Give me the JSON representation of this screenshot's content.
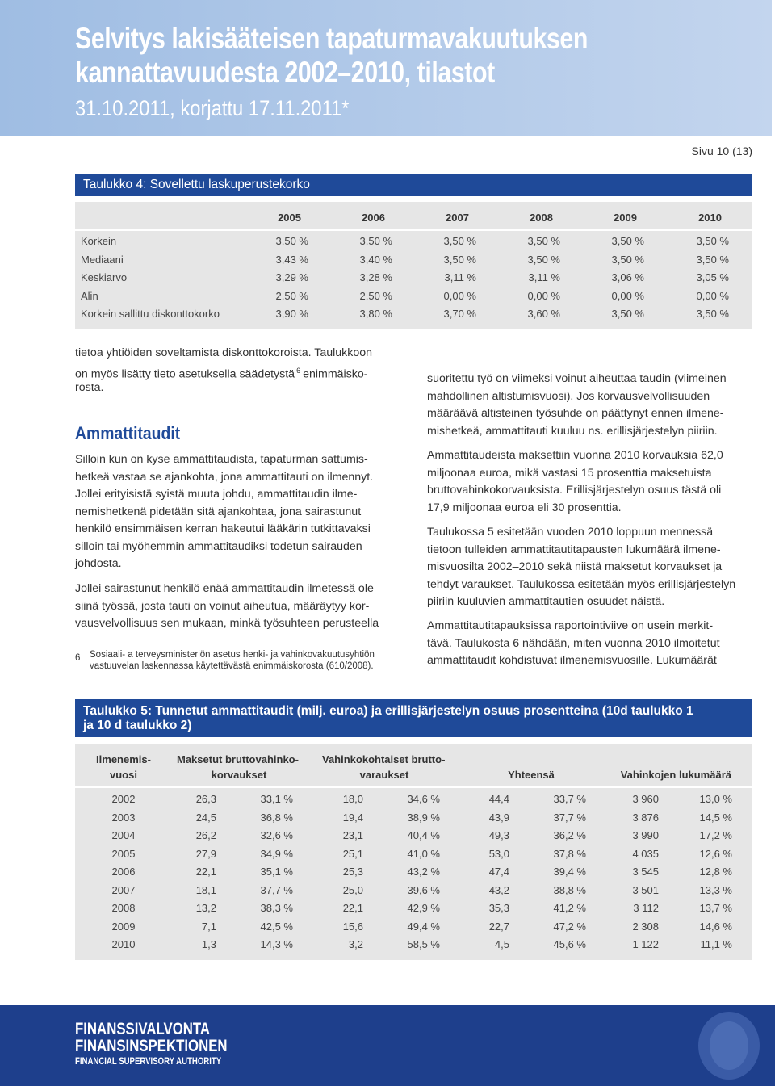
{
  "header": {
    "title": [
      "Selvitys lakisääteisen tapaturmavakuutuksen",
      "kannattavuudesta 2002–2010, tilastot"
    ],
    "subtitle": "31.10.2011, korjattu 17.11.2011*"
  },
  "page_number": "Sivu 10 (13)",
  "table4": {
    "title": "Taulukko 4: Sovellettu laskuperustekorko",
    "columns": [
      "2005",
      "2006",
      "2007",
      "2008",
      "2009",
      "2010"
    ],
    "rows": [
      [
        "Korkein",
        "3,50 %",
        "3,50 %",
        "3,50 %",
        "3,50 %",
        "3,50 %",
        "3,50 %"
      ],
      [
        "Mediaani",
        "3,43 %",
        "3,40 %",
        "3,50 %",
        "3,50 %",
        "3,50 %",
        "3,50 %"
      ],
      [
        "Keskiarvo",
        "3,29 %",
        "3,28 %",
        "3,11 %",
        "3,11 %",
        "3,06 %",
        "3,05 %"
      ],
      [
        "Alin",
        "2,50 %",
        "2,50 %",
        "0,00 %",
        "0,00 %",
        "0,00 %",
        "0,00 %"
      ],
      [
        "Korkein sallittu diskonttokorko",
        "3,90 %",
        "3,80 %",
        "3,70 %",
        "3,60 %",
        "3,50 %",
        "3,50 %"
      ]
    ]
  },
  "left_column": {
    "intro": [
      "tietoa yhtiöiden soveltamista diskonttokoroista. Taulukkoon",
      [
        "on myös lisätty tieto asetuksella säädetystä",
        "6",
        "enimmäisko-"
      ],
      "rosta."
    ],
    "heading": "Ammattitaudit",
    "paragraphs": [
      [
        "Silloin kun on kyse ammattitaudista, tapaturman sattumis-",
        "hetkeä vastaa se ajankohta, jona ammattitauti on ilmennyt.",
        "Jollei erityisistä syistä muuta johdu, ammattitaudin ilme-",
        "nemishetkenä pidetään sitä ajankohtaa, jona sairastunut",
        "henkilö ensimmäisen kerran hakeutui lääkärin tutkittavaksi",
        "silloin tai myöhemmin ammattitaudiksi todetun sairauden",
        "johdosta."
      ],
      [
        "Jollei sairastunut henkilö enää ammattitaudin ilmetessä ole",
        "siinä työssä, josta tauti on voinut aiheutua, määräytyy kor-",
        "vausvelvollisuus sen mukaan, minkä työsuhteen perusteella"
      ]
    ],
    "footnote": {
      "number": "6",
      "lines": [
        "Sosiaali- a terveysministeriön asetus henki- ja vahinkovakuutusyhtiön",
        "vastuuvelan laskennassa käytettävästä enimmäiskorosta (610/2008)."
      ]
    }
  },
  "right_column": {
    "paragraphs": [
      [
        "suoritettu työ on viimeksi voinut aiheuttaa taudin (viimeinen",
        "mahdollinen altistumisvuosi). Jos korvausvelvollisuuden",
        "määräävä altisteinen työsuhde on päättynyt ennen ilmene-",
        "mishetkeä, ammattitauti kuuluu ns. erillisjärjestelyn piiriin."
      ],
      [
        "Ammattitaudeista maksettiin vuonna 2010 korvauksia 62,0",
        "miljoonaa euroa, mikä vastasi 15 prosenttia maksetuista",
        "bruttovahinkokorvauksista. Erillisjärjestelyn osuus tästä oli",
        "17,9 miljoonaa euroa eli 30 prosenttia."
      ],
      [
        "Taulukossa 5 esitetään vuoden 2010 loppuun mennessä",
        "tietoon tulleiden ammattitautitapausten lukumäärä ilmene-",
        "misvuosilta 2002–2010 sekä niistä maksetut korvaukset ja",
        "tehdyt varaukset. Taulukossa esitetään myös erillisjärjestelyn",
        "piiriin kuuluvien ammattitautien osuudet näistä."
      ],
      [
        "Ammattitautitapauksissa raportointiviive on usein merkit-",
        "tävä. Taulukosta 6 nähdään, miten vuonna 2010 ilmoitetut",
        "ammattitaudit kohdistuvat ilmenemisvuosille. Lukumäärät"
      ]
    ]
  },
  "table5": {
    "title": [
      "Taulukko 5: Tunnetut ammattitaudit (milj. euroa) ja  erillisjärjestelyn osuus prosentteina (10d taulukko 1",
      "ja 10 d taulukko 2)"
    ],
    "header": [
      [
        "Ilmenemis-",
        "vuosi"
      ],
      [
        "Maksetut bruttovahinko-",
        "korvaukset"
      ],
      [
        "Vahinkokohtaiset brutto-",
        "varaukset"
      ],
      [
        "Yhteensä"
      ],
      [
        "Vahinkojen lukumäärä"
      ]
    ],
    "rows": [
      [
        "2002",
        "26,3",
        "33,1 %",
        "18,0",
        "34,6 %",
        "44,4",
        "33,7 %",
        "3 960",
        "13,0 %"
      ],
      [
        "2003",
        "24,5",
        "36,8 %",
        "19,4",
        "38,9 %",
        "43,9",
        "37,7 %",
        "3 876",
        "14,5 %"
      ],
      [
        "2004",
        "26,2",
        "32,6 %",
        "23,1",
        "40,4 %",
        "49,3",
        "36,2 %",
        "3 990",
        "17,2 %"
      ],
      [
        "2005",
        "27,9",
        "34,9 %",
        "25,1",
        "41,0 %",
        "53,0",
        "37,8 %",
        "4 035",
        "12,6 %"
      ],
      [
        "2006",
        "22,1",
        "35,1 %",
        "25,3",
        "43,2 %",
        "47,4",
        "39,4 %",
        "3 545",
        "12,8 %"
      ],
      [
        "2007",
        "18,1",
        "37,7 %",
        "25,0",
        "39,6 %",
        "43,2",
        "38,8 %",
        "3 501",
        "13,3 %"
      ],
      [
        "2008",
        "13,2",
        "38,3 %",
        "22,1",
        "42,9 %",
        "35,3",
        "41,2 %",
        "3 112",
        "13,7 %"
      ],
      [
        "2009",
        "7,1",
        "42,5 %",
        "15,6",
        "49,4 %",
        "22,7",
        "47,2 %",
        "2 308",
        "14,6 %"
      ],
      [
        "2010",
        "1,3",
        "14,3 %",
        "3,2",
        "58,5 %",
        "4,5",
        "45,6 %",
        "1 122",
        "11,1 %"
      ]
    ]
  },
  "footer": {
    "logo": [
      "FINANSSIVALVONTA",
      "FINANSINSPEKTIONEN",
      "FINANCIAL SUPERVISORY AUTHORITY"
    ]
  }
}
